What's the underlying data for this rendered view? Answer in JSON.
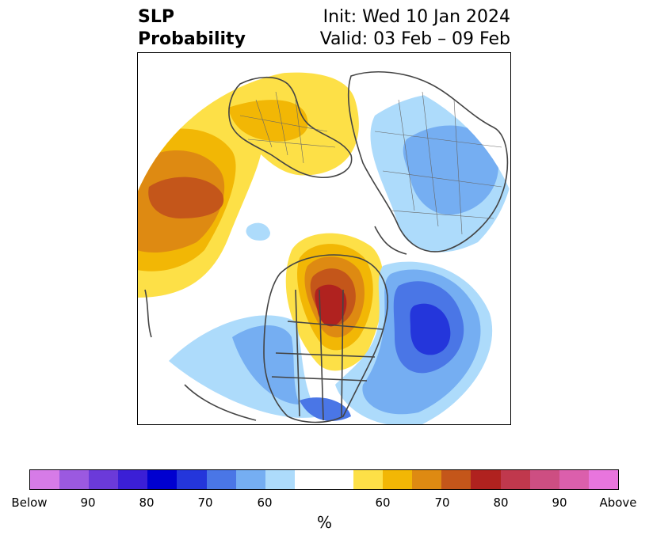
{
  "title": {
    "left_line1": "SLP",
    "left_line2": "Probability",
    "right_line1": "Init: Wed 10 Jan 2024",
    "right_line2": "Valid: 03 Feb – 09 Feb"
  },
  "map": {
    "projection": "north-polar-stereographic",
    "land_outline_color": "#444444",
    "anomaly_regions": [
      {
        "name": "north-pacific-above",
        "color": "#c4561a",
        "level": "70-75 above"
      },
      {
        "name": "canada-above",
        "color": "#b0221f",
        "level": "75-80 above"
      },
      {
        "name": "north-atlantic-below",
        "color": "#2436db",
        "level": "75-80 below"
      },
      {
        "name": "siberia-below",
        "color": "#75aef2",
        "level": "60-65 below"
      },
      {
        "name": "europe-above",
        "color": "#fde047",
        "level": "55-60 above"
      }
    ]
  },
  "colorbar": {
    "colors": [
      "#d67be7",
      "#9b59e0",
      "#6b3ad9",
      "#3b1fd6",
      "#0000d0",
      "#2436db",
      "#4a76e6",
      "#75aef2",
      "#addbfb",
      "#ffffff",
      "#ffffff",
      "#fde047",
      "#f2b705",
      "#de8a12",
      "#c4561a",
      "#b0221f",
      "#c0384d",
      "#cd4e82",
      "#db5fac",
      "#e875dd"
    ],
    "tick_labels": [
      "Below",
      "90",
      "80",
      "70",
      "60",
      "60",
      "70",
      "80",
      "90",
      "Above"
    ],
    "unit": "%"
  }
}
